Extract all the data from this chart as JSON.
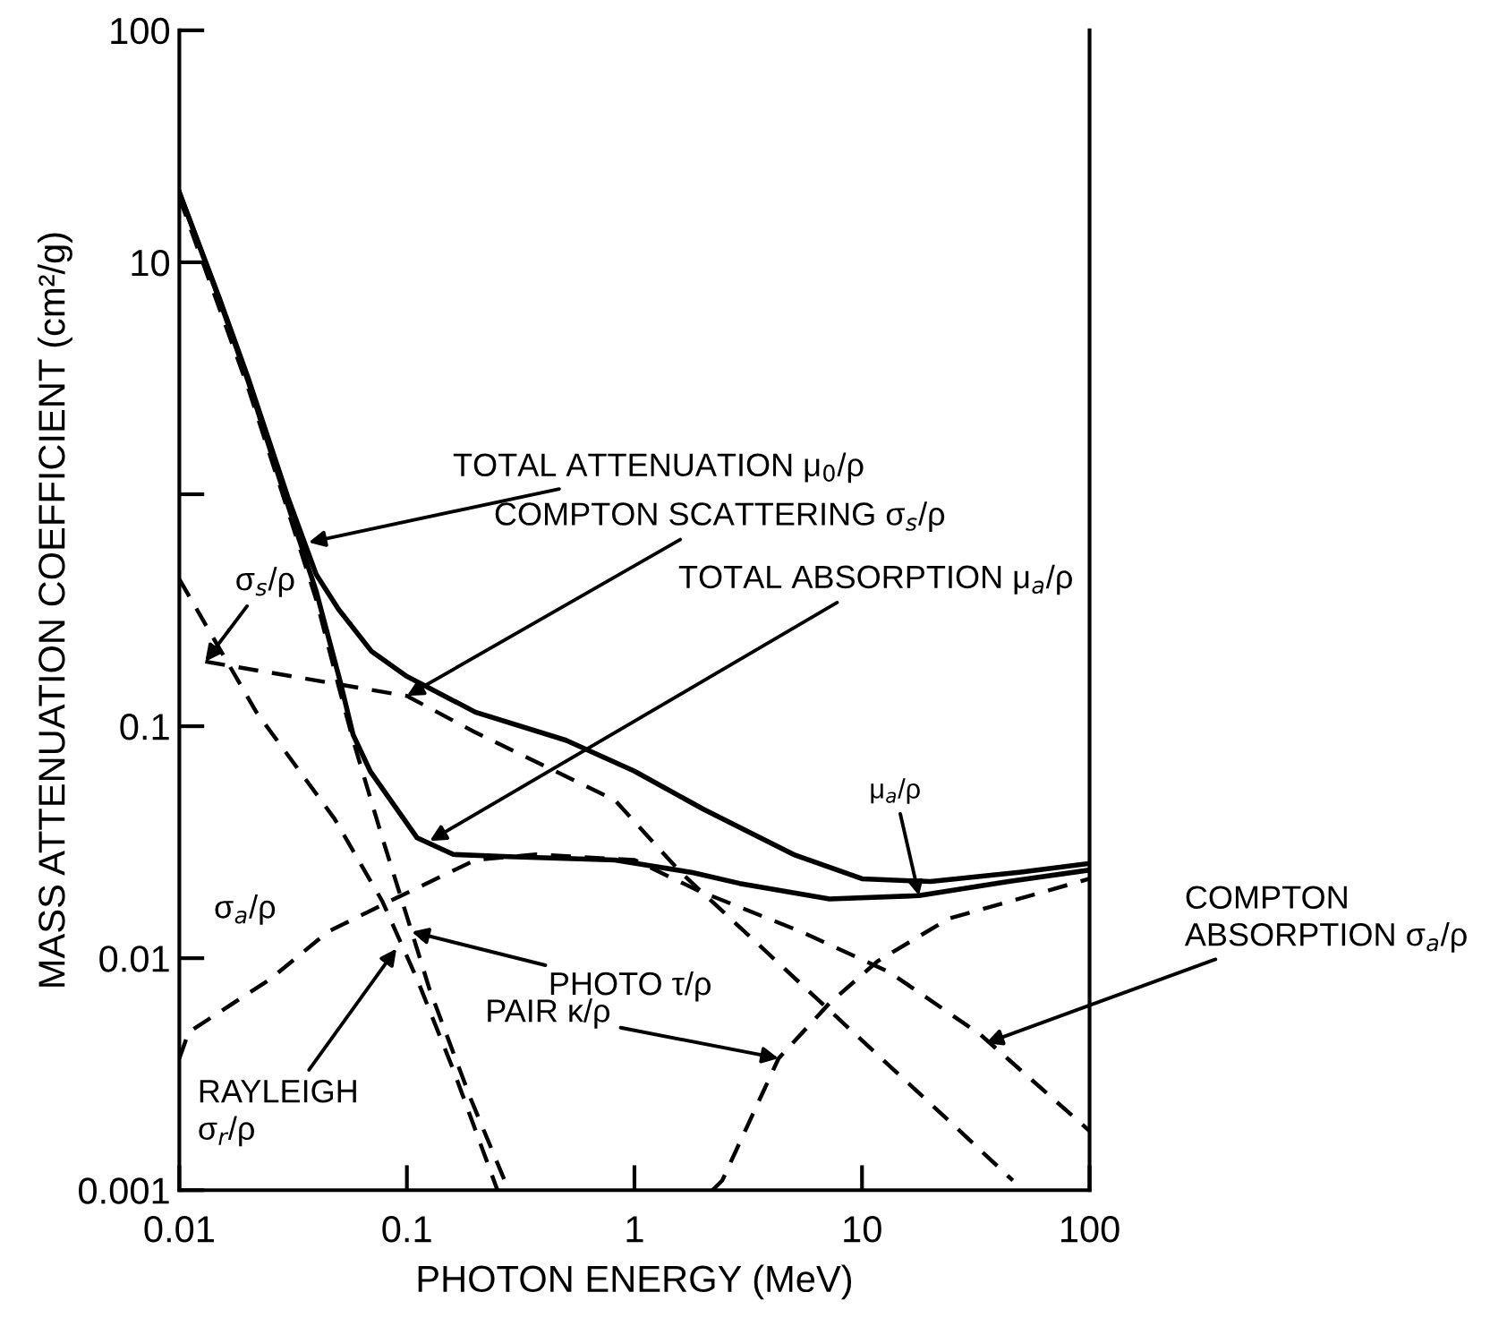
{
  "chart_data": {
    "type": "line",
    "xlabel": "PHOTON ENERGY (MeV)",
    "ylabel": "MASS ATTENUATION COEFFICIENT (cm²/g)",
    "log": "xy",
    "xlim": [
      0.01,
      100
    ],
    "ylim": [
      0.001,
      100
    ],
    "xticks": [
      0.01,
      0.1,
      1,
      10,
      100
    ],
    "yticks": [
      100,
      10,
      {
        "value": 1,
        "label": null
      },
      0.1,
      0.01,
      0.001
    ],
    "grid": false,
    "marker": "none",
    "series": [
      {
        "color": "#000000",
        "line_style": "solid",
        "x": [
          0.01,
          0.015,
          0.02,
          0.03,
          0.04,
          0.05,
          0.07,
          0.1,
          0.2,
          0.5,
          1,
          2,
          5,
          10,
          20,
          50,
          100
        ],
        "values": [
          20,
          7.0,
          3.2,
          0.97,
          0.45,
          0.32,
          0.21,
          0.164,
          0.115,
          0.087,
          0.064,
          0.044,
          0.028,
          0.022,
          0.0214,
          0.0235,
          0.0256
        ]
      },
      {
        "color": "#000000",
        "line_style": "solid",
        "x": [
          0.01,
          0.015,
          0.02,
          0.03,
          0.04,
          0.051,
          0.058,
          0.069,
          0.111,
          0.16,
          0.28,
          0.82,
          1.8,
          2.9,
          7.2,
          17.8,
          44,
          100
        ],
        "values": [
          20,
          6.9,
          3.1,
          0.9,
          0.38,
          0.155,
          0.092,
          0.064,
          0.033,
          0.028,
          0.0274,
          0.0265,
          0.0234,
          0.021,
          0.018,
          0.0186,
          0.0214,
          0.024
        ]
      },
      {
        "color": "#000000",
        "line_style": "dashed",
        "x": [
          0.013,
          0.1,
          0.2,
          0.82,
          1.6,
          3.9,
          9.8,
          24,
          46
        ],
        "values": [
          0.19,
          0.135,
          0.094,
          0.048,
          0.0234,
          0.0104,
          0.0045,
          0.002,
          0.0011
        ]
      },
      {
        "color": "#000000",
        "line_style": "dashed",
        "x": [
          0.01,
          0.011,
          0.025,
          0.045,
          0.088,
          0.2,
          0.37,
          1.0,
          1.9,
          5.4,
          13.2,
          33,
          100
        ],
        "values": [
          0.0037,
          0.0048,
          0.0081,
          0.013,
          0.018,
          0.0265,
          0.028,
          0.0265,
          0.0196,
          0.013,
          0.0087,
          0.0047,
          0.0018
        ]
      },
      {
        "color": "#000000",
        "line_style": "dashed",
        "x": [
          0.01,
          0.02,
          0.03,
          0.04,
          0.05,
          0.058,
          0.078,
          0.105,
          0.126,
          0.19,
          0.28
        ],
        "values": [
          19,
          2.9,
          0.85,
          0.35,
          0.15,
          0.087,
          0.033,
          0.013,
          0.0073,
          0.0025,
          0.001
        ]
      },
      {
        "color": "#000000",
        "line_style": "dashed",
        "x": [
          0.01,
          0.0218,
          0.048,
          0.078,
          0.111,
          0.16,
          0.25
        ],
        "values": [
          0.43,
          0.115,
          0.04,
          0.0176,
          0.0081,
          0.0033,
          0.001
        ]
      },
      {
        "color": "#000000",
        "line_style": "dashed",
        "x": [
          2.2,
          2.43,
          4.3,
          7.2,
          11.7,
          24,
          100
        ],
        "values": [
          0.001,
          0.0011,
          0.0037,
          0.0064,
          0.0097,
          0.0148,
          0.022
        ]
      }
    ],
    "annotations": [
      {
        "text": "TOTAL ATTENUATION μ$_{0}$/ρ",
        "x": 0.037,
        "y": 0.62
      },
      {
        "text": "COMPTON SCATTERING σ$_{s}$/ρ",
        "x": 0.1,
        "y": 0.135
      },
      {
        "text": "TOTAL ABSORPTION μ$_{a}$/ρ",
        "x": 0.126,
        "y": 0.032
      },
      {
        "text": "σ$_{s}$/ρ",
        "x": 0.013,
        "y": 0.19
      },
      {
        "text": "σ$_{a}$/ρ",
        "x": 0.025,
        "y": 0.0081
      },
      {
        "text": "μ$_{a}$/ρ",
        "x": 17.8,
        "y": 0.0186
      },
      {
        "text": "PHOTO τ/ρ",
        "x": 0.105,
        "y": 0.013
      },
      {
        "text": "RAYLEIGH\nσ$_{r}$/ρ",
        "x": 0.09,
        "y": 0.011
      },
      {
        "text": "PAIR κ/ρ",
        "x": 4.3,
        "y": 0.0037
      },
      {
        "text": "COMPTON\nABSORPTION σ$_{a}$/ρ",
        "x": 35,
        "y": 0.0043
      }
    ]
  }
}
